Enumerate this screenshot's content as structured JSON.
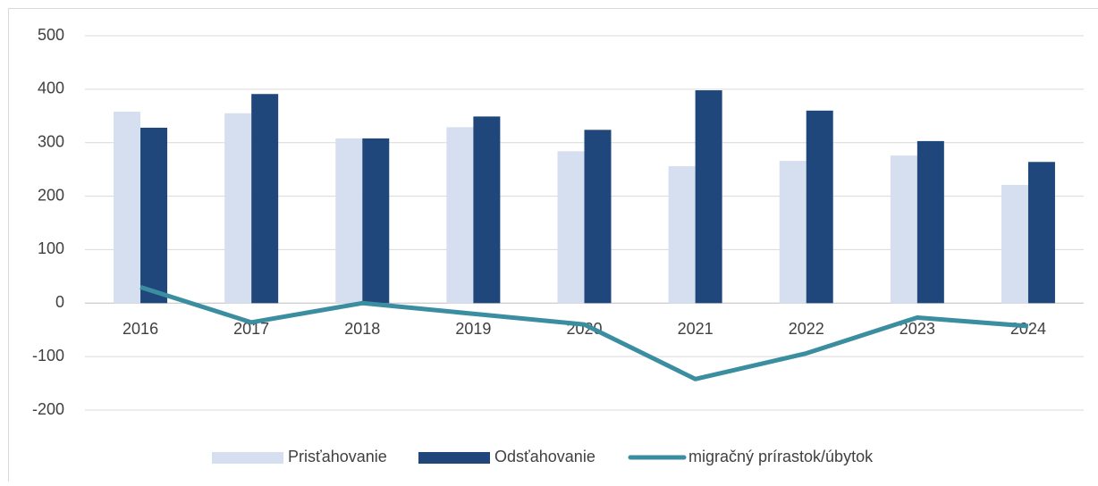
{
  "chart_data": {
    "type": "bar",
    "categories": [
      "2016",
      "2017",
      "2018",
      "2019",
      "2020",
      "2021",
      "2022",
      "2023",
      "2024"
    ],
    "series": [
      {
        "name": "Prisťahovanie",
        "color": "#d5dff0",
        "values": [
          358,
          355,
          308,
          329,
          284,
          256,
          266,
          276,
          221
        ]
      },
      {
        "name": "Odsťahovanie",
        "color": "#1f477b",
        "values": [
          328,
          391,
          308,
          349,
          324,
          398,
          360,
          303,
          264
        ]
      },
      {
        "name": "migračný prírastok/úbytok",
        "type": "line",
        "color": "#3a8ea0",
        "values": [
          30,
          -36,
          0,
          -20,
          -40,
          -142,
          -94,
          -27,
          -43
        ]
      }
    ],
    "ylim": [
      -200,
      500
    ],
    "yticks": [
      -200,
      -100,
      0,
      100,
      200,
      300,
      400,
      500
    ],
    "grid": true,
    "legend": "bottom"
  }
}
